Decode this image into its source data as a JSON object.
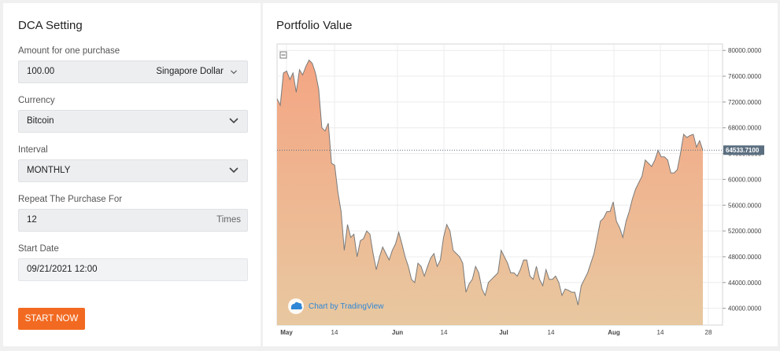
{
  "settings": {
    "title": "DCA Setting",
    "amount": {
      "label": "Amount for one purchase",
      "value": "100.00",
      "currency_select": "Singapore Dollar"
    },
    "currency": {
      "label": "Currency",
      "value": "Bitcoin"
    },
    "interval": {
      "label": "Interval",
      "value": "MONTHLY"
    },
    "repeat": {
      "label": "Repeat The Purchase For",
      "value": "12",
      "unit": "Times"
    },
    "start_date": {
      "label": "Start Date",
      "value": "09/21/2021 12:00"
    },
    "start_button": "START NOW"
  },
  "portfolio": {
    "title": "Portfolio Value",
    "attribution": "Chart by TradingView",
    "collapse_icon": "minus-square-icon"
  },
  "colors": {
    "accent": "#f26a21",
    "area_top": "#f4a583",
    "area_bottom": "#e8c8a0",
    "line": "#7a7a7a",
    "price_label_bg": "#5b6f80"
  },
  "chart_data": {
    "type": "area",
    "title": "Portfolio Value",
    "last_value_label": "64533.7100",
    "y_ticks": [
      "80000.0000",
      "76000.0000",
      "72000.0000",
      "68000.0000",
      "64000.0000",
      "60000.0000",
      "56000.0000",
      "52000.0000",
      "48000.0000",
      "44000.0000",
      "40000.0000"
    ],
    "x_ticks": [
      "May",
      "14",
      "Jun",
      "14",
      "Jul",
      "14",
      "Aug",
      "14",
      "28"
    ],
    "ylim": [
      37400,
      81000
    ],
    "grid": true,
    "series": [
      {
        "values": [
          72500,
          71500,
          76500,
          76800,
          75500,
          76500,
          73500,
          77000,
          76200,
          77500,
          78500,
          78000,
          76500,
          74000,
          68000,
          67500,
          68700,
          62500,
          62200,
          58000,
          55000,
          49000,
          53000,
          51000,
          51500,
          48000,
          50500,
          50800,
          52000,
          51500,
          48500,
          46000,
          48000,
          49500,
          48500,
          47500,
          49000,
          50000,
          51800,
          50000,
          48000,
          46500,
          44500,
          44000,
          47000,
          46500,
          45000,
          46500,
          47800,
          48500,
          46500,
          47500,
          51000,
          53000,
          52000,
          49000,
          48500,
          48000,
          47000,
          42500,
          43800,
          44500,
          46500,
          45500,
          43000,
          42000,
          44000,
          44500,
          45000,
          45500,
          49000,
          48000,
          47000,
          45500,
          45500,
          45000,
          46000,
          47500,
          47500,
          45000,
          44500,
          46500,
          44500,
          43500,
          46000,
          44500,
          44500,
          45000,
          44000,
          42000,
          43000,
          42800,
          42500,
          42500,
          40500,
          43500,
          44500,
          45500,
          47000,
          48500,
          51000,
          53500,
          54000,
          55000,
          55000,
          56500,
          53500,
          52500,
          51000,
          53500,
          55000,
          57000,
          58500,
          59500,
          60500,
          63000,
          62500,
          62000,
          63000,
          64500,
          63500,
          63500,
          63000,
          61000,
          61000,
          61500,
          64000,
          67000,
          66500,
          66800,
          67000,
          65000,
          66000,
          64500
        ]
      }
    ]
  }
}
